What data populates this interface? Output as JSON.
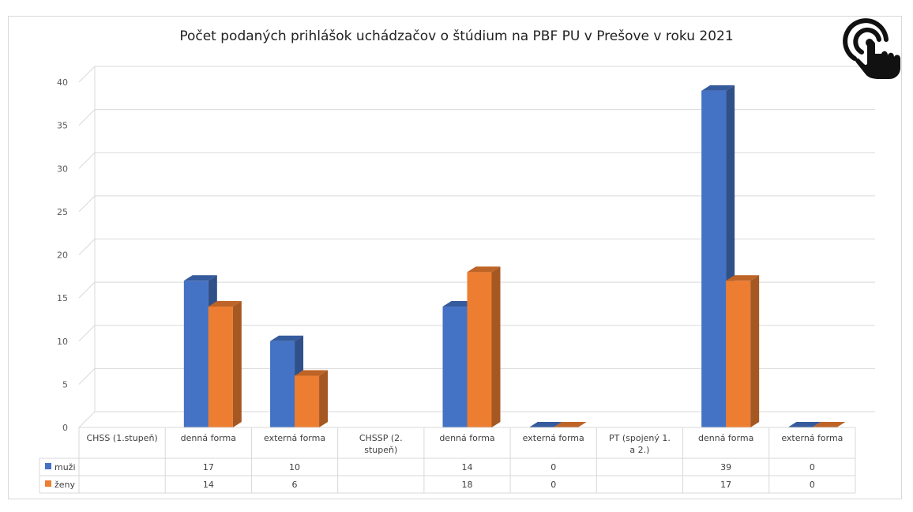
{
  "chart_data": {
    "type": "bar",
    "title": "Počet podaných prihlášok uchádzačov o štúdium na PBF PU v Prešove v roku 2021",
    "categories": [
      "CHSS (1.stupeň)",
      "denná forma",
      "externá forma",
      "CHSSP (2. stupeň)",
      "denná forma",
      "externá forma",
      "PT (spojený 1. a 2.)",
      "denná forma",
      "externá forma"
    ],
    "series": [
      {
        "name": "muži",
        "color": "#4472C4",
        "values": [
          null,
          17,
          10,
          null,
          14,
          0,
          null,
          39,
          0
        ]
      },
      {
        "name": "ženy",
        "color": "#ED7D31",
        "values": [
          null,
          14,
          6,
          null,
          18,
          0,
          null,
          17,
          0
        ]
      }
    ],
    "ylim": [
      0,
      40
    ],
    "yticks": [
      0,
      5,
      10,
      15,
      20,
      25,
      30,
      35,
      40
    ],
    "grid": true,
    "legend": "data-table"
  }
}
